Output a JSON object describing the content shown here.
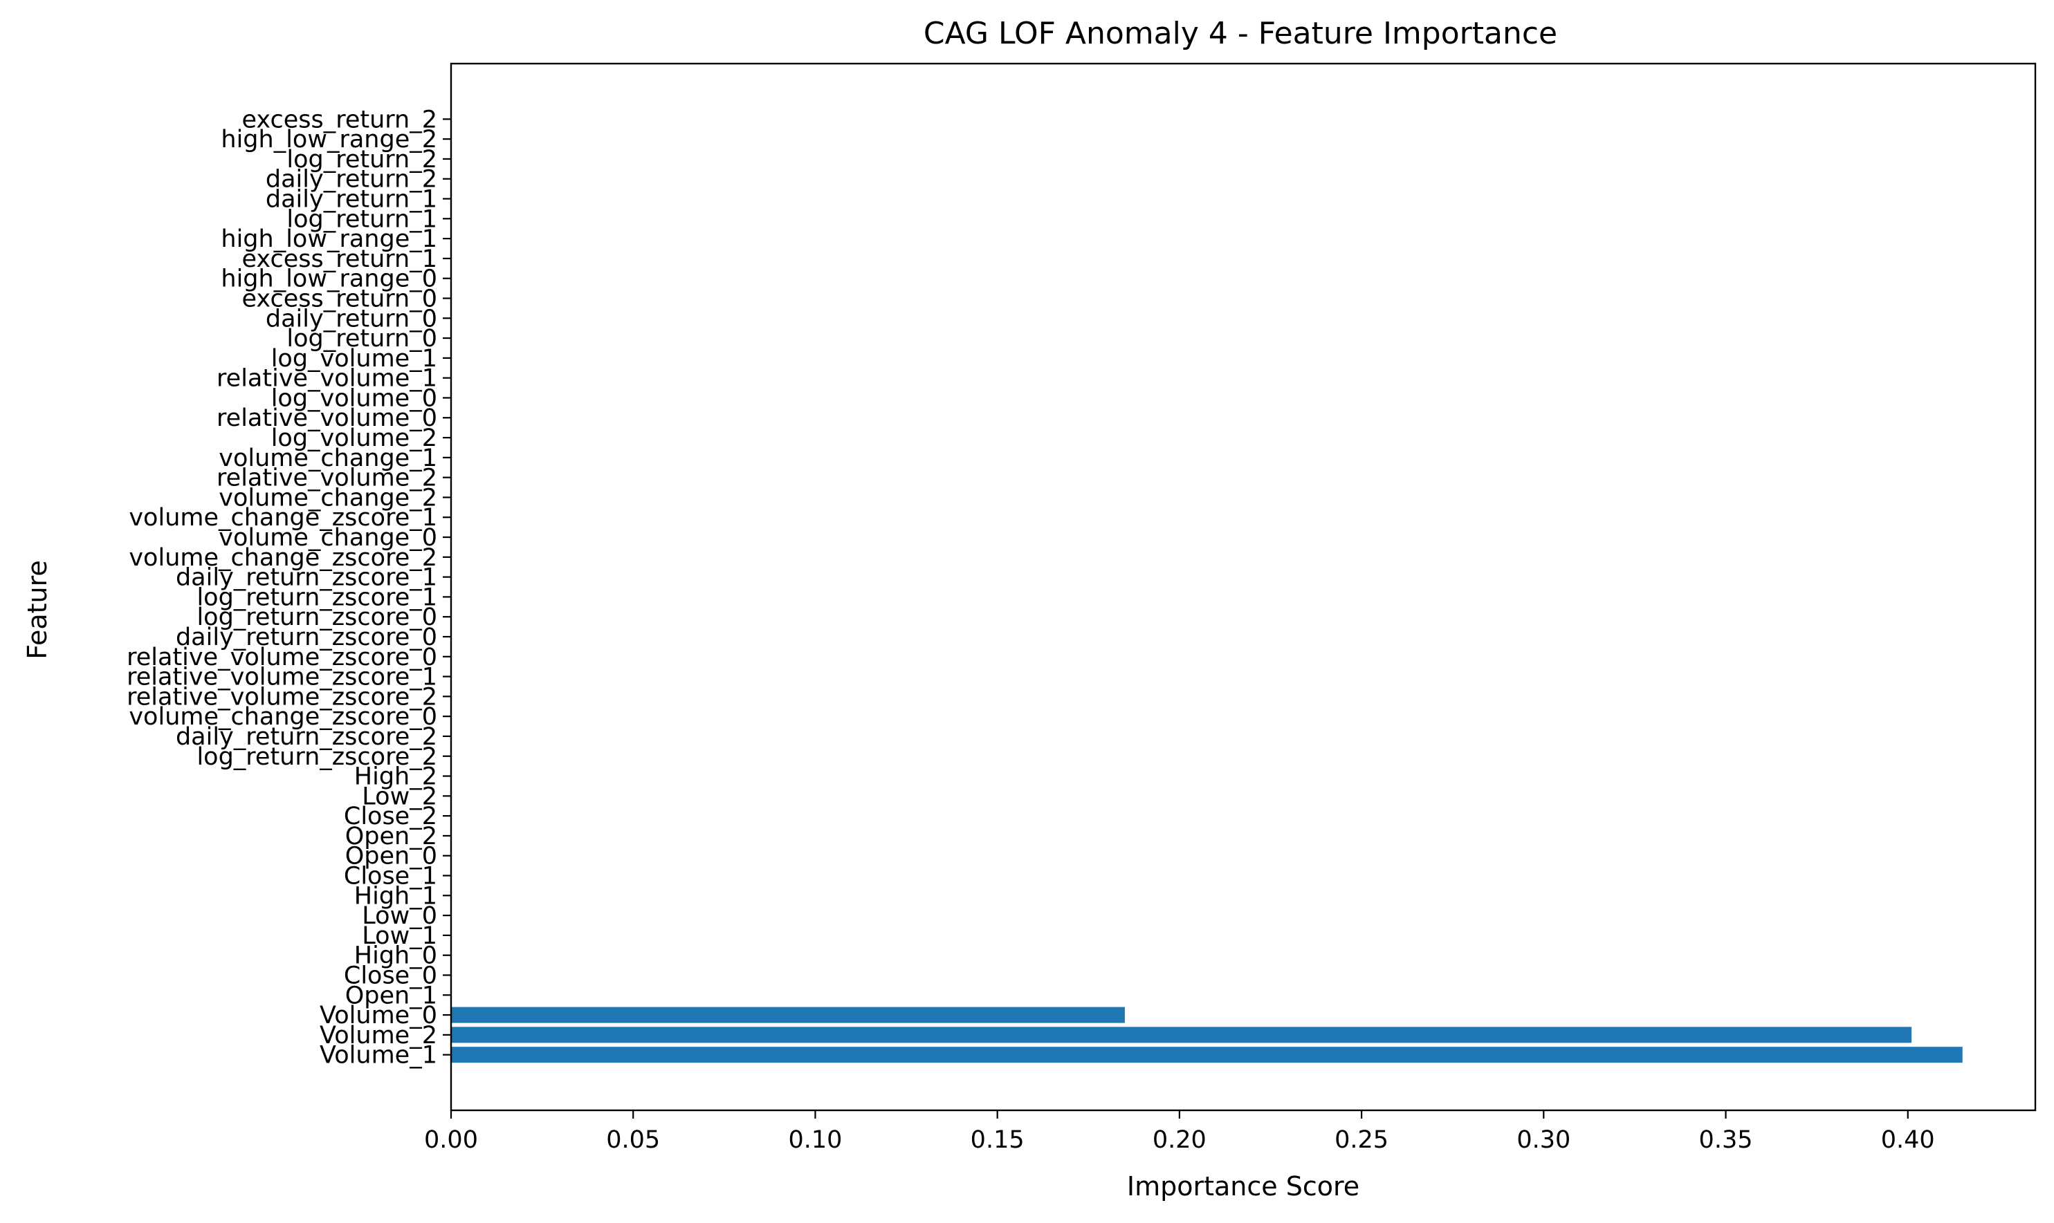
{
  "chart_data": {
    "type": "bar",
    "orientation": "horizontal",
    "title": "CAG LOF Anomaly 4 - Feature Importance",
    "xlabel": "Importance Score",
    "ylabel": "Feature",
    "xlim": [
      0,
      0.435
    ],
    "xticks": [
      0.0,
      0.05,
      0.1,
      0.15,
      0.2,
      0.25,
      0.3,
      0.35,
      0.4
    ],
    "xtick_labels": [
      "0.00",
      "0.05",
      "0.10",
      "0.15",
      "0.20",
      "0.25",
      "0.30",
      "0.35",
      "0.40"
    ],
    "grid": false,
    "bar_color": "#1f77b4",
    "categories": [
      "Volume_1",
      "Volume_2",
      "Volume_0",
      "Open_1",
      "Close_0",
      "High_0",
      "Low_1",
      "Low_0",
      "High_1",
      "Close_1",
      "Open_0",
      "Open_2",
      "Close_2",
      "Low_2",
      "High_2",
      "log_return_zscore_2",
      "daily_return_zscore_2",
      "volume_change_zscore_0",
      "relative_volume_zscore_2",
      "relative_volume_zscore_1",
      "relative_volume_zscore_0",
      "daily_return_zscore_0",
      "log_return_zscore_0",
      "log_return_zscore_1",
      "daily_return_zscore_1",
      "volume_change_zscore_2",
      "volume_change_0",
      "volume_change_zscore_1",
      "volume_change_2",
      "relative_volume_2",
      "volume_change_1",
      "log_volume_2",
      "relative_volume_0",
      "log_volume_0",
      "relative_volume_1",
      "log_volume_1",
      "log_return_0",
      "daily_return_0",
      "excess_return_0",
      "high_low_range_0",
      "excess_return_1",
      "high_low_range_1",
      "log_return_1",
      "daily_return_1",
      "daily_return_2",
      "log_return_2",
      "high_low_range_2",
      "excess_return_2"
    ],
    "values": [
      0.415,
      0.401,
      0.185,
      0,
      0,
      0,
      0,
      0,
      0,
      0,
      0,
      0,
      0,
      0,
      0,
      0,
      0,
      0,
      0,
      0,
      0,
      0,
      0,
      0,
      0,
      0,
      0,
      0,
      0,
      0,
      0,
      0,
      0,
      0,
      0,
      0,
      0,
      0,
      0,
      0,
      0,
      0,
      0,
      0,
      0,
      0,
      0,
      0
    ]
  }
}
